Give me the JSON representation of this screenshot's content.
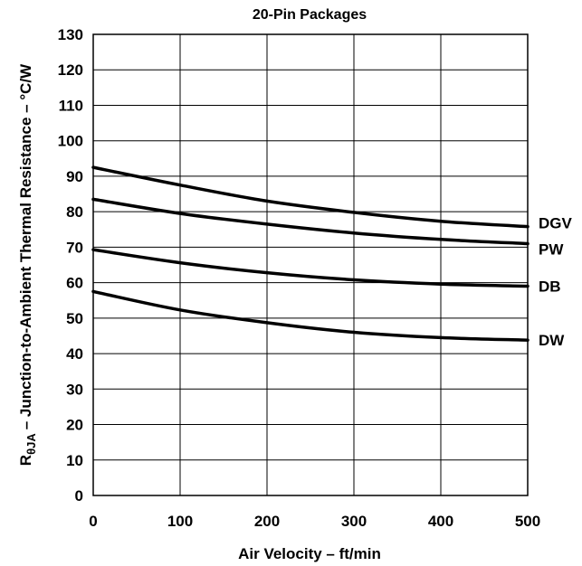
{
  "chart_data": {
    "type": "line",
    "title": "20-Pin Packages",
    "xlabel": "Air Velocity – ft/min",
    "ylabel_main": "R",
    "ylabel_sub": "θJA",
    "ylabel_rest": "– Junction-to-Ambient Thermal Resistance – °C/W",
    "xlim": [
      0,
      500
    ],
    "ylim": [
      0,
      130
    ],
    "x_ticks": [
      "0",
      "100",
      "200",
      "300",
      "400",
      "500"
    ],
    "y_ticks": [
      "0",
      "10",
      "20",
      "30",
      "40",
      "50",
      "60",
      "70",
      "80",
      "90",
      "100",
      "110",
      "120",
      "130"
    ],
    "grid": true,
    "x": [
      0,
      100,
      200,
      300,
      400,
      500
    ],
    "series": [
      {
        "name": "DGV",
        "values": [
          92.5,
          87.5,
          83.0,
          79.8,
          77.3,
          75.8
        ]
      },
      {
        "name": "PW",
        "values": [
          83.5,
          79.5,
          76.5,
          74.0,
          72.2,
          71.0
        ]
      },
      {
        "name": "DB",
        "values": [
          69.3,
          65.6,
          62.8,
          60.8,
          59.6,
          59.0
        ]
      },
      {
        "name": "DW",
        "values": [
          57.5,
          52.3,
          48.7,
          46.0,
          44.5,
          43.8
        ]
      }
    ]
  }
}
